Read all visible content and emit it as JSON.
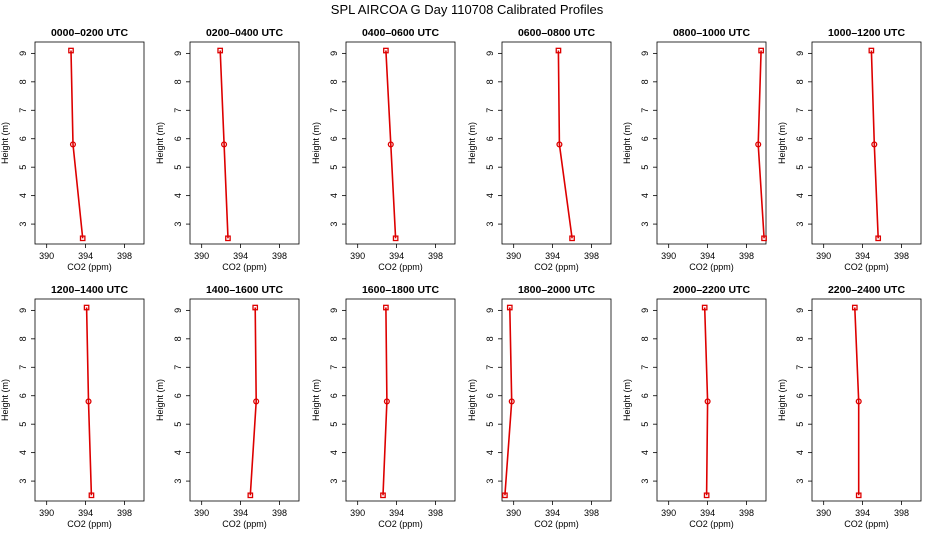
{
  "title": "SPL AIRCOA G  Day 110708  Calibrated Profiles",
  "colors": {
    "series": "#dd0000",
    "axis": "#000000",
    "background": "#ffffff"
  },
  "chart_data": [
    {
      "type": "line",
      "title": "0000–0200 UTC",
      "xlabel": "CO2 (ppm)",
      "ylabel": "Height (m)",
      "xlim": [
        388.8,
        400.0
      ],
      "ylim": [
        2.3,
        9.4
      ],
      "xticks": [
        "390",
        "394",
        "398"
      ],
      "yticks": [
        "3",
        "4",
        "5",
        "6",
        "7",
        "8",
        "9"
      ],
      "x": [
        392.5,
        392.7,
        393.7
      ],
      "y": [
        9.1,
        5.8,
        2.5
      ]
    },
    {
      "type": "line",
      "title": "0200–0400 UTC",
      "xlabel": "CO2 (ppm)",
      "ylabel": "Height (m)",
      "xlim": [
        388.8,
        400.0
      ],
      "ylim": [
        2.3,
        9.4
      ],
      "xticks": [
        "390",
        "394",
        "398"
      ],
      "yticks": [
        "3",
        "4",
        "5",
        "6",
        "7",
        "8",
        "9"
      ],
      "x": [
        391.9,
        392.3,
        392.7
      ],
      "y": [
        9.1,
        5.8,
        2.5
      ]
    },
    {
      "type": "line",
      "title": "0400–0600 UTC",
      "xlabel": "CO2 (ppm)",
      "ylabel": "Height (m)",
      "xlim": [
        388.8,
        400.0
      ],
      "ylim": [
        2.3,
        9.4
      ],
      "xticks": [
        "390",
        "394",
        "398"
      ],
      "yticks": [
        "3",
        "4",
        "5",
        "6",
        "7",
        "8",
        "9"
      ],
      "x": [
        392.9,
        393.4,
        393.9
      ],
      "y": [
        9.1,
        5.8,
        2.5
      ]
    },
    {
      "type": "line",
      "title": "0600–0800 UTC",
      "xlabel": "CO2 (ppm)",
      "ylabel": "Height (m)",
      "xlim": [
        388.8,
        400.0
      ],
      "ylim": [
        2.3,
        9.4
      ],
      "xticks": [
        "390",
        "394",
        "398"
      ],
      "yticks": [
        "3",
        "4",
        "5",
        "6",
        "7",
        "8",
        "9"
      ],
      "x": [
        394.6,
        394.7,
        396.0
      ],
      "y": [
        9.1,
        5.8,
        2.5
      ]
    },
    {
      "type": "line",
      "title": "0800–1000 UTC",
      "xlabel": "CO2 (ppm)",
      "ylabel": "Height (m)",
      "xlim": [
        388.8,
        400.0
      ],
      "ylim": [
        2.3,
        9.4
      ],
      "xticks": [
        "390",
        "394",
        "398"
      ],
      "yticks": [
        "3",
        "4",
        "5",
        "6",
        "7",
        "8",
        "9"
      ],
      "x": [
        399.5,
        399.2,
        399.8
      ],
      "y": [
        9.1,
        5.8,
        2.5
      ]
    },
    {
      "type": "line",
      "title": "1000–1200 UTC",
      "xlabel": "CO2 (ppm)",
      "ylabel": "Height (m)",
      "xlim": [
        388.8,
        400.0
      ],
      "ylim": [
        2.3,
        9.4
      ],
      "xticks": [
        "390",
        "394",
        "398"
      ],
      "yticks": [
        "3",
        "4",
        "5",
        "6",
        "7",
        "8",
        "9"
      ],
      "x": [
        394.9,
        395.2,
        395.6
      ],
      "y": [
        9.1,
        5.8,
        2.5
      ]
    },
    {
      "type": "line",
      "title": "1200–1400 UTC",
      "xlabel": "CO2 (ppm)",
      "ylabel": "Height (m)",
      "xlim": [
        388.8,
        400.0
      ],
      "ylim": [
        2.3,
        9.4
      ],
      "xticks": [
        "390",
        "394",
        "398"
      ],
      "yticks": [
        "3",
        "4",
        "5",
        "6",
        "7",
        "8",
        "9"
      ],
      "x": [
        394.1,
        394.3,
        394.6
      ],
      "y": [
        9.1,
        5.8,
        2.5
      ]
    },
    {
      "type": "line",
      "title": "1400–1600 UTC",
      "xlabel": "CO2 (ppm)",
      "ylabel": "Height (m)",
      "xlim": [
        388.8,
        400.0
      ],
      "ylim": [
        2.3,
        9.4
      ],
      "xticks": [
        "390",
        "394",
        "398"
      ],
      "yticks": [
        "3",
        "4",
        "5",
        "6",
        "7",
        "8",
        "9"
      ],
      "x": [
        395.5,
        395.6,
        395.0
      ],
      "y": [
        9.1,
        5.8,
        2.5
      ]
    },
    {
      "type": "line",
      "title": "1600–1800 UTC",
      "xlabel": "CO2 (ppm)",
      "ylabel": "Height (m)",
      "xlim": [
        388.8,
        400.0
      ],
      "ylim": [
        2.3,
        9.4
      ],
      "xticks": [
        "390",
        "394",
        "398"
      ],
      "yticks": [
        "3",
        "4",
        "5",
        "6",
        "7",
        "8",
        "9"
      ],
      "x": [
        392.9,
        393.0,
        392.6
      ],
      "y": [
        9.1,
        5.8,
        2.5
      ]
    },
    {
      "type": "line",
      "title": "1800–2000 UTC",
      "xlabel": "CO2 (ppm)",
      "ylabel": "Height (m)",
      "xlim": [
        388.8,
        400.0
      ],
      "ylim": [
        2.3,
        9.4
      ],
      "xticks": [
        "390",
        "394",
        "398"
      ],
      "yticks": [
        "3",
        "4",
        "5",
        "6",
        "7",
        "8",
        "9"
      ],
      "x": [
        389.6,
        389.8,
        389.1
      ],
      "y": [
        9.1,
        5.8,
        2.5
      ]
    },
    {
      "type": "line",
      "title": "2000–2200 UTC",
      "xlabel": "CO2 (ppm)",
      "ylabel": "Height (m)",
      "xlim": [
        388.8,
        400.0
      ],
      "ylim": [
        2.3,
        9.4
      ],
      "xticks": [
        "390",
        "394",
        "398"
      ],
      "yticks": [
        "3",
        "4",
        "5",
        "6",
        "7",
        "8",
        "9"
      ],
      "x": [
        393.7,
        394.0,
        393.9
      ],
      "y": [
        9.1,
        5.8,
        2.5
      ]
    },
    {
      "type": "line",
      "title": "2200–2400 UTC",
      "xlabel": "CO2 (ppm)",
      "ylabel": "Height (m)",
      "xlim": [
        388.8,
        400.0
      ],
      "ylim": [
        2.3,
        9.4
      ],
      "xticks": [
        "390",
        "394",
        "398"
      ],
      "yticks": [
        "3",
        "4",
        "5",
        "6",
        "7",
        "8",
        "9"
      ],
      "x": [
        393.2,
        393.6,
        393.6
      ],
      "y": [
        9.1,
        5.8,
        2.5
      ]
    }
  ]
}
